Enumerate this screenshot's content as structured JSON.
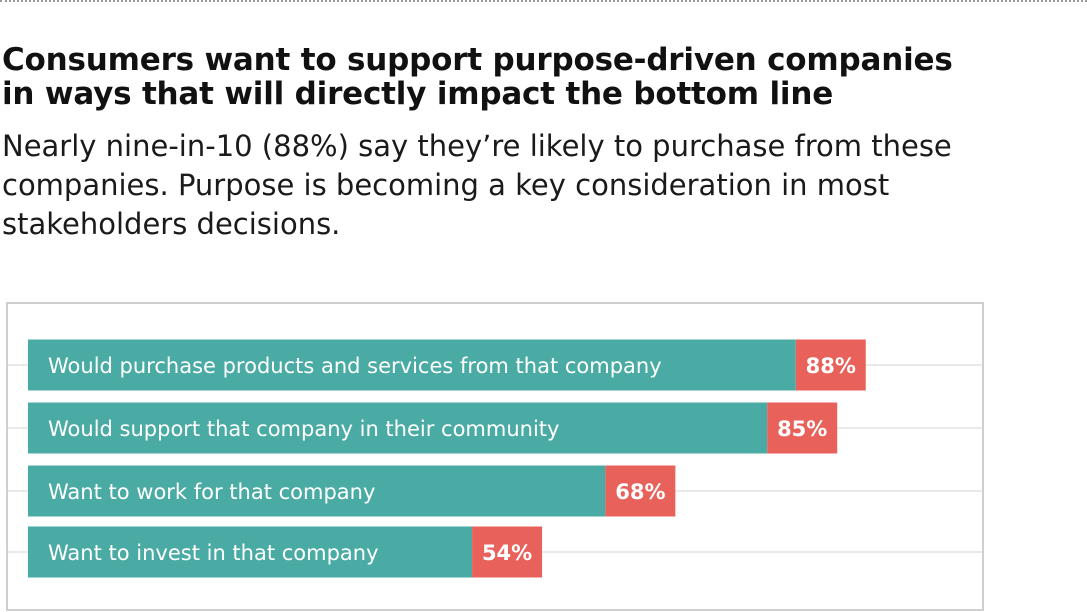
{
  "header": {
    "title_line1": "Consumers want to support purpose-driven companies",
    "title_line2": "in ways that will directly impact the bottom line",
    "subtitle_line1": "Nearly nine-in-10 (88%) say they’re likely to purchase from these",
    "subtitle_line2": "companies. Purpose is becoming a key consideration in most",
    "subtitle_line3": "stakeholders decisions."
  },
  "colors": {
    "bar": "#4aaba4",
    "value_box": "#e8625b",
    "frame": "#cfcfcf",
    "gridline": "#d6d6d6",
    "bar_text": "#ffffff"
  },
  "chart_data": {
    "type": "bar",
    "orientation": "horizontal",
    "categories": [
      "Would purchase products and services from that company",
      "Would support that company in their community",
      "Want to work for that company",
      "Want to invest in that company"
    ],
    "values": [
      88,
      85,
      68,
      54
    ],
    "value_labels": [
      "88%",
      "85%",
      "68%",
      "54%"
    ],
    "xlim": [
      0,
      100
    ],
    "grid": true,
    "legend": "none"
  }
}
